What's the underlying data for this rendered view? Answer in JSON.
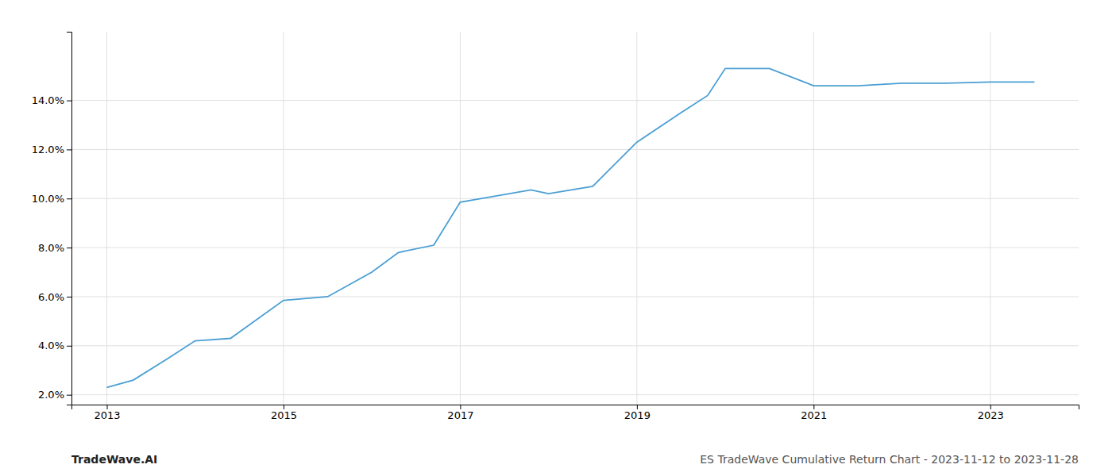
{
  "chart_data": {
    "type": "line",
    "x": [
      2013,
      2013.3,
      2013.7,
      2014,
      2014.4,
      2015,
      2015.5,
      2016,
      2016.3,
      2016.7,
      2017,
      2017.4,
      2017.8,
      2018,
      2018.5,
      2019,
      2019.5,
      2019.8,
      2020,
      2020.5,
      2021,
      2021.5,
      2022,
      2022.5,
      2023,
      2023.5
    ],
    "values": [
      2.3,
      2.6,
      3.5,
      4.2,
      4.3,
      5.85,
      6.0,
      7.0,
      7.8,
      8.1,
      9.85,
      10.1,
      10.35,
      10.2,
      10.5,
      12.3,
      13.5,
      14.2,
      15.3,
      15.3,
      14.6,
      14.6,
      14.7,
      14.7,
      14.75,
      14.75
    ],
    "color": "#4a9fd4",
    "xlim": [
      2012.6,
      2024.0
    ],
    "xticks": [
      2013,
      2015,
      2017,
      2019,
      2021,
      2023
    ],
    "ylim": [
      1.6,
      16.8
    ],
    "yticks": [
      {
        "value": 2.0,
        "label": "2.0%"
      },
      {
        "value": 4.0,
        "label": "4.0%"
      },
      {
        "value": 6.0,
        "label": "6.0%"
      },
      {
        "value": 8.0,
        "label": "8.0%"
      },
      {
        "value": 10.0,
        "label": "10.0%"
      },
      {
        "value": 12.0,
        "label": "12.0%"
      },
      {
        "value": 14.0,
        "label": "14.0%"
      }
    ],
    "grid": true,
    "annotations": [
      "TradeWave.AI",
      "ES TradeWave Cumulative Return Chart - 2023-11-12 to 2023-11-28"
    ]
  }
}
